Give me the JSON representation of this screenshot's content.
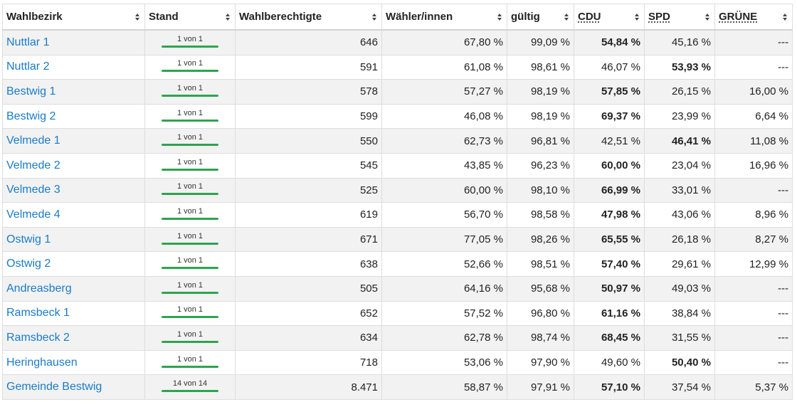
{
  "headers": [
    {
      "label": "Wahlbezirk",
      "abbr": false
    },
    {
      "label": "Stand",
      "abbr": false
    },
    {
      "label": "Wahlberechtigte",
      "abbr": false
    },
    {
      "label": "Wähler/innen",
      "abbr": false
    },
    {
      "label": "gültig",
      "abbr": false
    },
    {
      "label": "CDU",
      "abbr": true
    },
    {
      "label": "SPD",
      "abbr": true
    },
    {
      "label": "GRÜNE",
      "abbr": true
    }
  ],
  "rows": [
    {
      "name": "Nuttlar 1",
      "stand": "1 von 1",
      "stand_progress": 1,
      "berechtigte": "646",
      "waehler": "67,80 %",
      "gueltig": "99,09 %",
      "cdu": "54,84 %",
      "spd": "45,16 %",
      "gruene": "---",
      "winner": "cdu"
    },
    {
      "name": "Nuttlar 2",
      "stand": "1 von 1",
      "stand_progress": 1,
      "berechtigte": "591",
      "waehler": "61,08 %",
      "gueltig": "98,61 %",
      "cdu": "46,07 %",
      "spd": "53,93 %",
      "gruene": "---",
      "winner": "spd"
    },
    {
      "name": "Bestwig 1",
      "stand": "1 von 1",
      "stand_progress": 1,
      "berechtigte": "578",
      "waehler": "57,27 %",
      "gueltig": "98,19 %",
      "cdu": "57,85 %",
      "spd": "26,15 %",
      "gruene": "16,00 %",
      "winner": "cdu"
    },
    {
      "name": "Bestwig 2",
      "stand": "1 von 1",
      "stand_progress": 1,
      "berechtigte": "599",
      "waehler": "46,08 %",
      "gueltig": "98,19 %",
      "cdu": "69,37 %",
      "spd": "23,99 %",
      "gruene": "6,64 %",
      "winner": "cdu"
    },
    {
      "name": "Velmede 1",
      "stand": "1 von 1",
      "stand_progress": 1,
      "berechtigte": "550",
      "waehler": "62,73 %",
      "gueltig": "96,81 %",
      "cdu": "42,51 %",
      "spd": "46,41 %",
      "gruene": "11,08 %",
      "winner": "spd"
    },
    {
      "name": "Velmede 2",
      "stand": "1 von 1",
      "stand_progress": 1,
      "berechtigte": "545",
      "waehler": "43,85 %",
      "gueltig": "96,23 %",
      "cdu": "60,00 %",
      "spd": "23,04 %",
      "gruene": "16,96 %",
      "winner": "cdu"
    },
    {
      "name": "Velmede 3",
      "stand": "1 von 1",
      "stand_progress": 1,
      "berechtigte": "525",
      "waehler": "60,00 %",
      "gueltig": "98,10 %",
      "cdu": "66,99 %",
      "spd": "33,01 %",
      "gruene": "---",
      "winner": "cdu"
    },
    {
      "name": "Velmede 4",
      "stand": "1 von 1",
      "stand_progress": 1,
      "berechtigte": "619",
      "waehler": "56,70 %",
      "gueltig": "98,58 %",
      "cdu": "47,98 %",
      "spd": "43,06 %",
      "gruene": "8,96 %",
      "winner": "cdu"
    },
    {
      "name": "Ostwig 1",
      "stand": "1 von 1",
      "stand_progress": 1,
      "berechtigte": "671",
      "waehler": "77,05 %",
      "gueltig": "98,26 %",
      "cdu": "65,55 %",
      "spd": "26,18 %",
      "gruene": "8,27 %",
      "winner": "cdu"
    },
    {
      "name": "Ostwig 2",
      "stand": "1 von 1",
      "stand_progress": 1,
      "berechtigte": "638",
      "waehler": "52,66 %",
      "gueltig": "98,51 %",
      "cdu": "57,40 %",
      "spd": "29,61 %",
      "gruene": "12,99 %",
      "winner": "cdu"
    },
    {
      "name": "Andreasberg",
      "stand": "1 von 1",
      "stand_progress": 1,
      "berechtigte": "505",
      "waehler": "64,16 %",
      "gueltig": "95,68 %",
      "cdu": "50,97 %",
      "spd": "49,03 %",
      "gruene": "---",
      "winner": "cdu"
    },
    {
      "name": "Ramsbeck 1",
      "stand": "1 von 1",
      "stand_progress": 1,
      "berechtigte": "652",
      "waehler": "57,52 %",
      "gueltig": "96,80 %",
      "cdu": "61,16 %",
      "spd": "38,84 %",
      "gruene": "---",
      "winner": "cdu"
    },
    {
      "name": "Ramsbeck 2",
      "stand": "1 von 1",
      "stand_progress": 1,
      "berechtigte": "634",
      "waehler": "62,78 %",
      "gueltig": "98,74 %",
      "cdu": "68,45 %",
      "spd": "31,55 %",
      "gruene": "---",
      "winner": "cdu"
    },
    {
      "name": "Heringhausen",
      "stand": "1 von 1",
      "stand_progress": 1,
      "berechtigte": "718",
      "waehler": "53,06 %",
      "gueltig": "97,90 %",
      "cdu": "49,60 %",
      "spd": "50,40 %",
      "gruene": "---",
      "winner": "spd"
    },
    {
      "name": "Gemeinde Bestwig",
      "stand": "14 von 14",
      "stand_progress": 1,
      "berechtigte": "8.471",
      "waehler": "58,87 %",
      "gueltig": "97,91 %",
      "cdu": "57,10 %",
      "spd": "37,54 %",
      "gruene": "5,37 %",
      "winner": "cdu"
    }
  ],
  "colors": {
    "link": "#1a7bc9",
    "progress": "#2ea44f",
    "row_alt": "#f2f2f2",
    "border": "#dddddd"
  },
  "icons": {
    "sort": "sort-icon"
  }
}
